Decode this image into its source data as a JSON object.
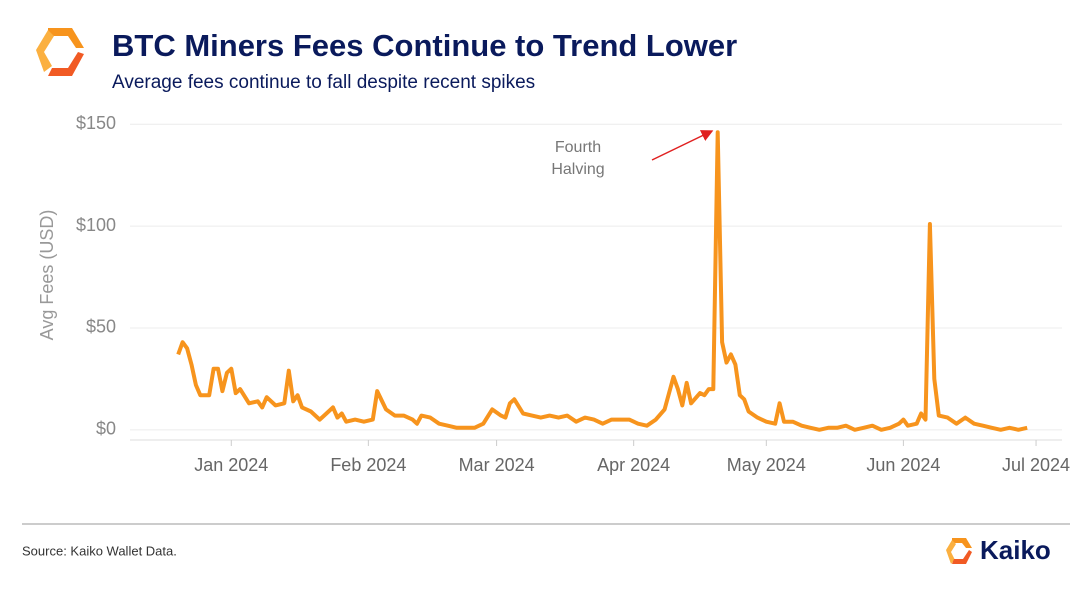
{
  "chart_data": {
    "type": "line",
    "title": "BTC Miners Fees Continue to Trend Lower",
    "subtitle": "Average fees continue to fall despite recent spikes",
    "y_label": "Avg Fees (USD)",
    "annotation": "Fourth\nHalving",
    "source": "Source: Kaiko Wallet Data.",
    "brand": "Kaiko",
    "grid": true,
    "x": [
      "2023-12-20",
      "2023-12-21",
      "2023-12-22",
      "2023-12-23",
      "2023-12-24",
      "2023-12-25",
      "2023-12-26",
      "2023-12-27",
      "2023-12-28",
      "2023-12-29",
      "2023-12-30",
      "2023-12-31",
      "2024-01-01",
      "2024-01-02",
      "2024-01-03",
      "2024-01-05",
      "2024-01-07",
      "2024-01-08",
      "2024-01-09",
      "2024-01-11",
      "2024-01-13",
      "2024-01-14",
      "2024-01-15",
      "2024-01-16",
      "2024-01-17",
      "2024-01-19",
      "2024-01-21",
      "2024-01-22",
      "2024-01-24",
      "2024-01-25",
      "2024-01-26",
      "2024-01-27",
      "2024-01-29",
      "2024-01-31",
      "2024-02-02",
      "2024-02-03",
      "2024-02-05",
      "2024-02-07",
      "2024-02-09",
      "2024-02-11",
      "2024-02-12",
      "2024-02-13",
      "2024-02-15",
      "2024-02-17",
      "2024-02-19",
      "2024-02-21",
      "2024-02-23",
      "2024-02-25",
      "2024-02-27",
      "2024-02-29",
      "2024-03-02",
      "2024-03-03",
      "2024-03-04",
      "2024-03-05",
      "2024-03-07",
      "2024-03-09",
      "2024-03-11",
      "2024-03-13",
      "2024-03-15",
      "2024-03-17",
      "2024-03-19",
      "2024-03-21",
      "2024-03-23",
      "2024-03-25",
      "2024-03-27",
      "2024-03-29",
      "2024-03-31",
      "2024-04-02",
      "2024-04-04",
      "2024-04-06",
      "2024-04-08",
      "2024-04-10",
      "2024-04-11",
      "2024-04-12",
      "2024-04-13",
      "2024-04-14",
      "2024-04-16",
      "2024-04-17",
      "2024-04-18",
      "2024-04-19",
      "2024-04-20",
      "2024-04-21",
      "2024-04-22",
      "2024-04-23",
      "2024-04-24",
      "2024-04-25",
      "2024-04-26",
      "2024-04-27",
      "2024-04-29",
      "2024-05-01",
      "2024-05-03",
      "2024-05-04",
      "2024-05-05",
      "2024-05-07",
      "2024-05-09",
      "2024-05-11",
      "2024-05-13",
      "2024-05-15",
      "2024-05-17",
      "2024-05-19",
      "2024-05-21",
      "2024-05-23",
      "2024-05-25",
      "2024-05-27",
      "2024-05-29",
      "2024-05-31",
      "2024-06-01",
      "2024-06-02",
      "2024-06-04",
      "2024-06-05",
      "2024-06-06",
      "2024-06-07",
      "2024-06-08",
      "2024-06-09",
      "2024-06-11",
      "2024-06-13",
      "2024-06-15",
      "2024-06-17",
      "2024-06-19",
      "2024-06-21",
      "2024-06-23",
      "2024-06-25",
      "2024-06-27",
      "2024-06-29"
    ],
    "series": [
      {
        "name": "Avg Fees (USD)",
        "color": "#f7941d",
        "values": [
          37,
          43,
          40,
          32,
          22,
          17,
          17,
          17,
          30,
          30,
          19,
          28,
          30,
          18,
          20,
          13,
          14,
          11,
          16,
          12,
          13,
          29,
          14,
          17,
          11,
          9,
          5,
          7,
          11,
          6,
          8,
          4,
          5,
          4,
          5,
          19,
          10,
          7,
          7,
          5,
          3,
          7,
          6,
          3,
          2,
          1,
          1,
          1,
          3,
          10,
          7,
          6,
          13,
          15,
          8,
          7,
          6,
          7,
          6,
          7,
          4,
          6,
          5,
          3,
          5,
          5,
          5,
          3,
          2,
          5,
          10,
          26,
          20,
          12,
          23,
          13,
          18,
          17,
          20,
          20,
          146,
          43,
          33,
          37,
          32,
          17,
          15,
          9,
          6,
          4,
          3,
          13,
          4,
          4,
          2,
          1,
          0,
          1,
          1,
          2,
          0,
          1,
          2,
          0,
          1,
          3,
          5,
          2,
          3,
          8,
          5,
          101,
          25,
          7,
          6,
          3,
          6,
          3,
          2,
          1,
          0,
          1,
          0,
          1
        ]
      }
    ],
    "xlim": [
      "2023-12-10",
      "2024-07-08"
    ],
    "xticks": [
      {
        "value": "2024-01-01",
        "label": "Jan 2024"
      },
      {
        "value": "2024-02-01",
        "label": "Feb 2024"
      },
      {
        "value": "2024-03-01",
        "label": "Mar 2024"
      },
      {
        "value": "2024-04-01",
        "label": "Apr 2024"
      },
      {
        "value": "2024-05-01",
        "label": "May 2024"
      },
      {
        "value": "2024-06-01",
        "label": "Jun 2024"
      },
      {
        "value": "2024-07-01",
        "label": "Jul 2024"
      }
    ],
    "ylim": [
      -5,
      155
    ],
    "yticks": [
      {
        "value": 0,
        "label": "$0"
      },
      {
        "value": 50,
        "label": "$50"
      },
      {
        "value": 100,
        "label": "$100"
      },
      {
        "value": 150,
        "label": "$150"
      }
    ]
  }
}
